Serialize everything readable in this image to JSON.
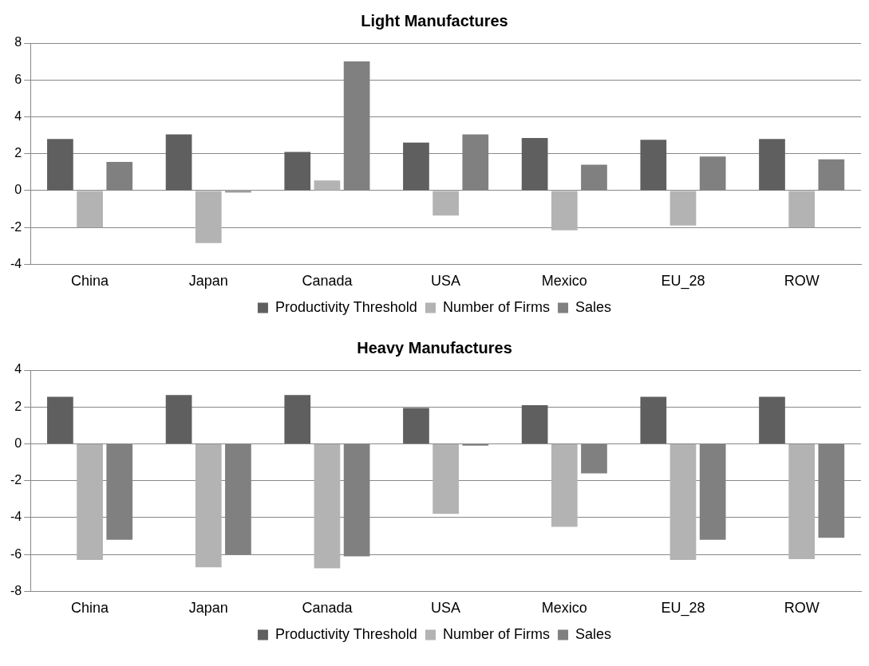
{
  "chart_data": [
    {
      "type": "bar",
      "title": "Light Manufactures",
      "categories": [
        "China",
        "Japan",
        "Canada",
        "USA",
        "Mexico",
        "EU_28",
        "ROW"
      ],
      "series": [
        {
          "name": "Productivity Threshold",
          "color": "#5f5f5f",
          "values": [
            2.8,
            3.05,
            2.1,
            2.6,
            2.85,
            2.75,
            2.8
          ]
        },
        {
          "name": "Number of Firms",
          "color": "#b3b3b3",
          "values": [
            -2.0,
            -2.85,
            0.55,
            -1.35,
            -2.15,
            -1.9,
            -2.0
          ]
        },
        {
          "name": "Sales",
          "color": "#808080",
          "values": [
            1.55,
            -0.1,
            7.0,
            3.05,
            1.4,
            1.85,
            1.7
          ]
        }
      ],
      "ylim": [
        -4,
        8
      ],
      "yticks": [
        -4,
        -2,
        0,
        2,
        4,
        6,
        8
      ],
      "grid": "y",
      "legend": "bottom"
    },
    {
      "type": "bar",
      "title": "Heavy Manufactures",
      "categories": [
        "China",
        "Japan",
        "Canada",
        "USA",
        "Mexico",
        "EU_28",
        "ROW"
      ],
      "series": [
        {
          "name": "Productivity Threshold",
          "color": "#5f5f5f",
          "values": [
            2.55,
            2.65,
            2.65,
            1.95,
            2.1,
            2.55,
            2.55
          ]
        },
        {
          "name": "Number of Firms",
          "color": "#b3b3b3",
          "values": [
            -6.3,
            -6.7,
            -6.75,
            -3.8,
            -4.5,
            -6.3,
            -6.25
          ]
        },
        {
          "name": "Sales",
          "color": "#808080",
          "values": [
            -5.2,
            -6.0,
            -6.1,
            -0.1,
            -1.6,
            -5.2,
            -5.1
          ]
        }
      ],
      "ylim": [
        -8,
        4
      ],
      "yticks": [
        -8,
        -6,
        -4,
        -2,
        0,
        2,
        4
      ],
      "grid": "y",
      "legend": "bottom"
    }
  ]
}
